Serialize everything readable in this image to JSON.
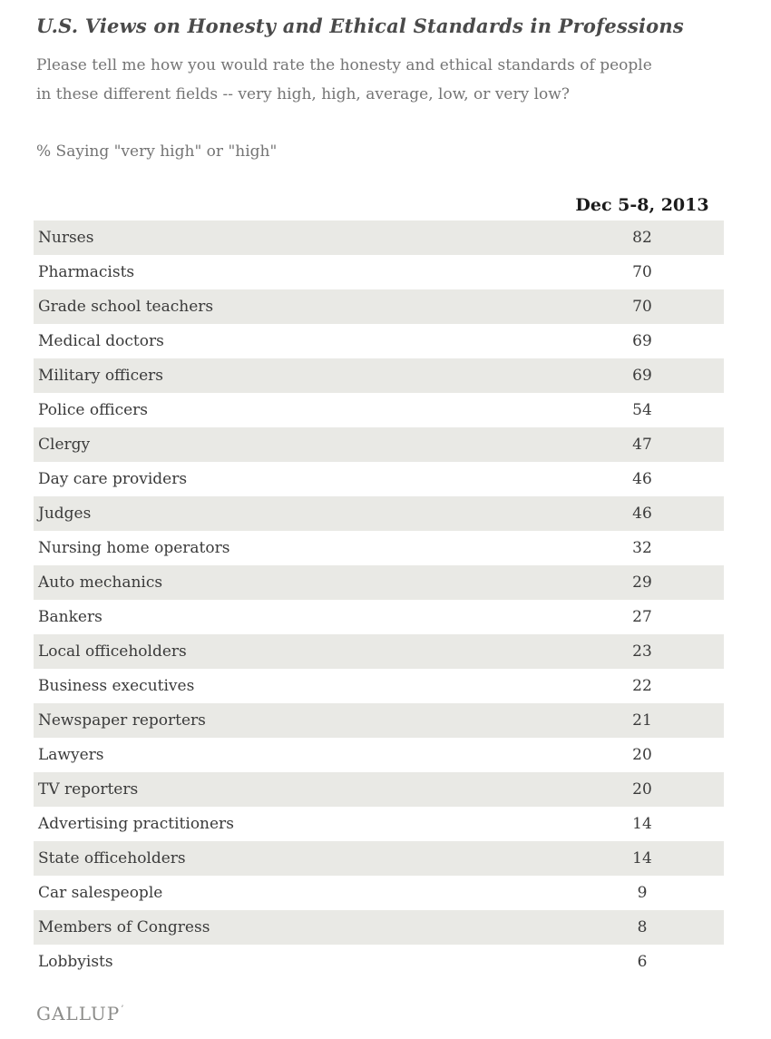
{
  "page": {
    "title": "U.S. Views on Honesty and Ethical Standards in Professions",
    "question": "Please tell me how you would rate the honesty and ethical standards of people in these different fields -- very high, high, average, low, or very low?",
    "metric_note": "% Saying \"very high\" or \"high\"",
    "logo_text": "GALLUP",
    "logo_trademark": "’"
  },
  "chart_data": {
    "type": "table",
    "title": "U.S. Views on Honesty and Ethical Standards in Professions",
    "subtitle": "Please tell me how you would rate the honesty and ethical standards of people in these different fields -- very high, high, average, low, or very low?",
    "metric": "% Saying \"very high\" or \"high\"",
    "column_header": "Dec 5-8, 2013",
    "categories": [
      "Nurses",
      "Pharmacists",
      "Grade school teachers",
      "Medical doctors",
      "Military officers",
      "Police officers",
      "Clergy",
      "Day care providers",
      "Judges",
      "Nursing home operators",
      "Auto mechanics",
      "Bankers",
      "Local officeholders",
      "Business executives",
      "Newspaper reporters",
      "Lawyers",
      "TV reporters",
      "Advertising practitioners",
      "State officeholders",
      "Car salespeople",
      "Members of Congress",
      "Lobbyists"
    ],
    "values": [
      82,
      70,
      70,
      69,
      69,
      54,
      47,
      46,
      46,
      32,
      29,
      27,
      23,
      22,
      21,
      20,
      20,
      14,
      14,
      9,
      8,
      6
    ],
    "layout": {
      "row_striping": "alternating starting shaded",
      "value_alignment": "center",
      "unit": "percent"
    }
  },
  "colors": {
    "background": "#ffffff",
    "shaded_row": "#e9e9e5",
    "title_text": "#4a4a4a",
    "muted_text": "#747474",
    "body_text": "#3a3a3a",
    "header_text": "#1a1a1a",
    "logo_text": "#8c8c8a"
  }
}
